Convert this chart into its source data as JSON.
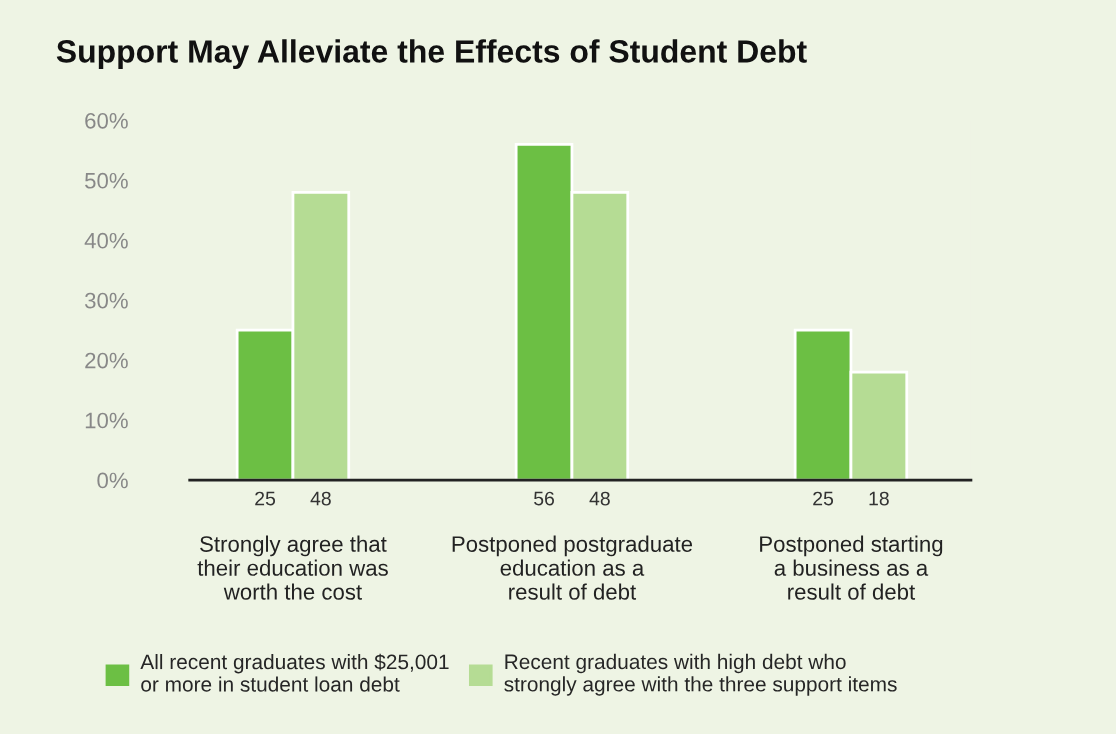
{
  "chart_data": {
    "type": "bar",
    "title": "Support May Alleviate the Effects of Student Debt",
    "categories": [
      "Strongly agree that\ntheir education was\nworth the cost",
      "Postponed postgraduate\neducation as a\nresult of debt",
      "Postponed starting\na business as a\nresult of debt"
    ],
    "series": [
      {
        "name": "All recent graduates with $25,001\nor more in student loan debt",
        "color": "#6cbf44",
        "values": [
          25,
          56,
          25
        ]
      },
      {
        "name": "Recent graduates with high debt who\nstrongly agree with the three support items",
        "color": "#b5dc94",
        "values": [
          48,
          48,
          18
        ]
      }
    ],
    "ylim": [
      0,
      60
    ],
    "yticks": [
      {
        "value": 0,
        "label": "0%"
      },
      {
        "value": 10,
        "label": "10%"
      },
      {
        "value": 20,
        "label": "20%"
      },
      {
        "value": 30,
        "label": "30%"
      },
      {
        "value": 40,
        "label": "40%"
      },
      {
        "value": 50,
        "label": "50%"
      },
      {
        "value": 60,
        "label": "60%"
      }
    ],
    "data_labels": true,
    "grid": false,
    "legend": "bottom"
  }
}
